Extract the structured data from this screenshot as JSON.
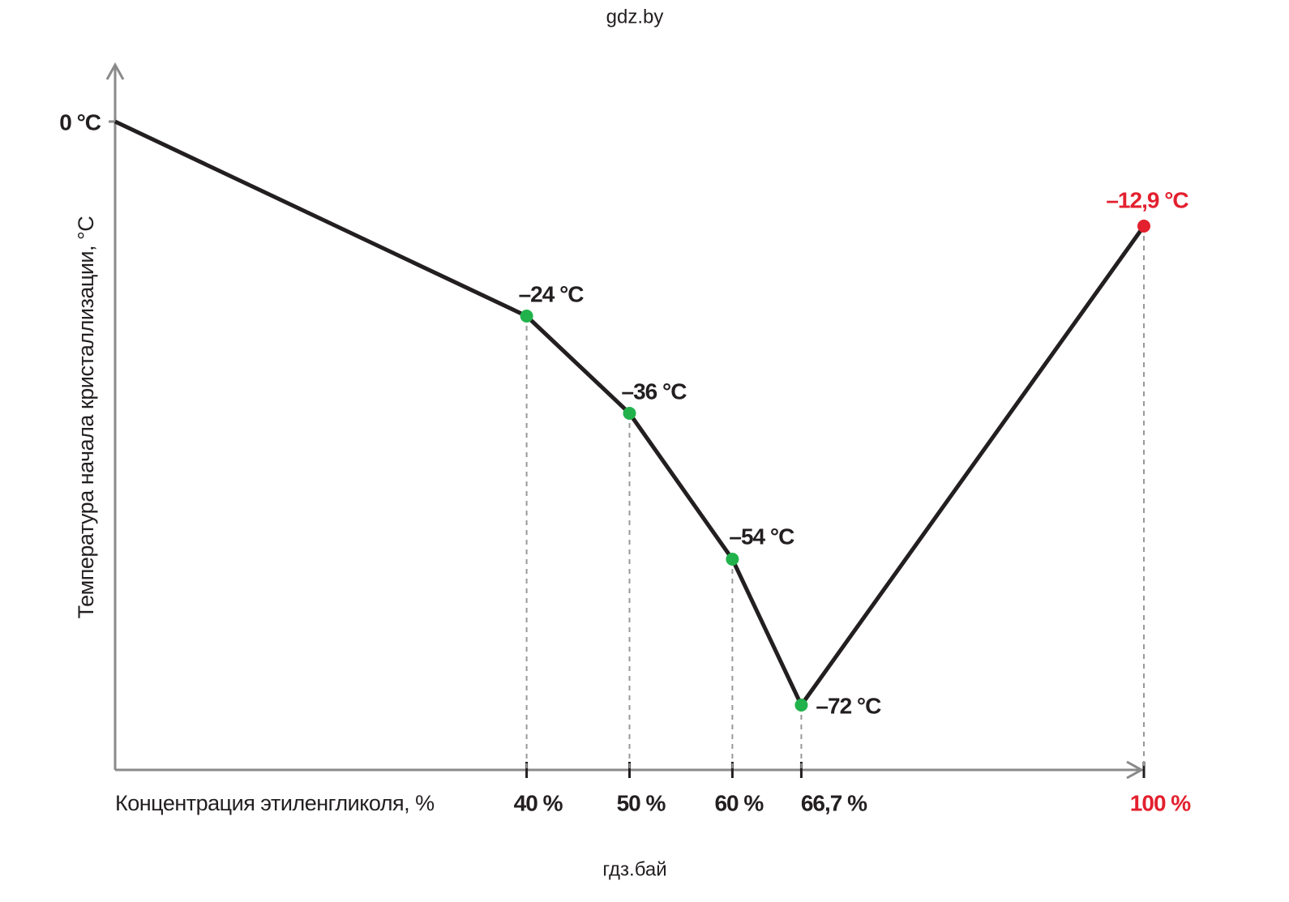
{
  "header": "gdz.by",
  "footer": "гдз.бай",
  "chart_data": {
    "type": "line",
    "x_label": "Концентрация этиленгликоля, %",
    "y_label": "Температура начала кристаллизации, °C",
    "x": [
      0,
      40,
      50,
      60,
      66.7,
      100
    ],
    "series": [
      {
        "color": "#231f20",
        "values": [
          0,
          -24,
          -36,
          -54,
          -72,
          -12.9
        ],
        "value_labels": [
          null,
          "–24 °C",
          "–36 °C",
          "–54 °C",
          "–72 °C",
          "–12,9 °C"
        ],
        "marker_colors": [
          null,
          "#22b24c",
          "#22b24c",
          "#22b24c",
          "#22b24c",
          "#e3202e"
        ]
      }
    ],
    "xlim": [
      0,
      100
    ],
    "ylim": [
      -80,
      6
    ],
    "xticks": [
      {
        "value": 40,
        "label": "40 %"
      },
      {
        "value": 50,
        "label": "50 %"
      },
      {
        "value": 60,
        "label": "60 %"
      },
      {
        "value": 66.7,
        "label": "66,7 %"
      },
      {
        "value": 100,
        "label": "100 %"
      }
    ],
    "xtick_colors": [
      "#231f20",
      "#231f20",
      "#231f20",
      "#231f20",
      "#e3202e"
    ],
    "yticks": [
      {
        "value": 0,
        "label": "0 °C"
      }
    ]
  }
}
